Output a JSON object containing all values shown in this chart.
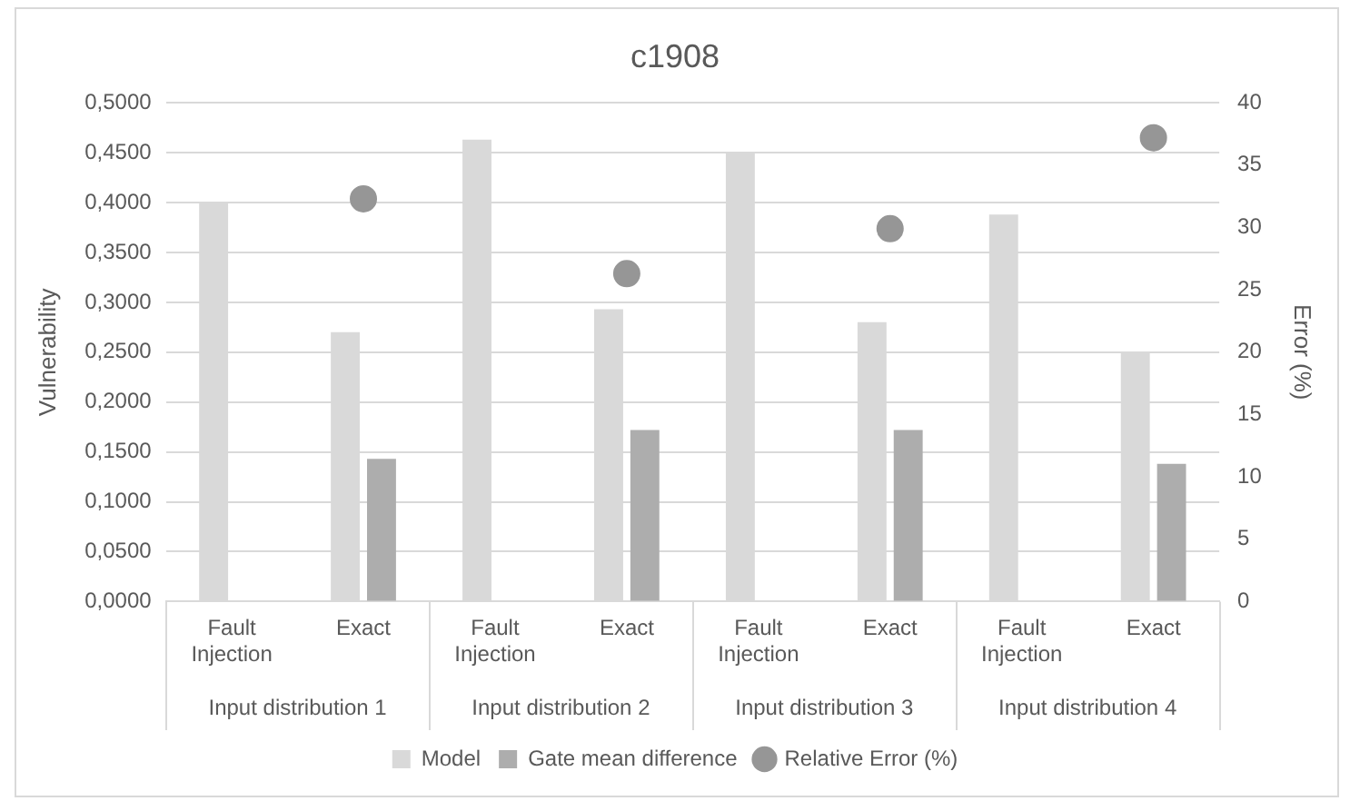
{
  "chart_data": {
    "type": "bar",
    "title": "c1908",
    "ylabel": "Vulnerability",
    "y2label": "Error (%)",
    "categories": [
      "Fault Injection",
      "Exact",
      "Fault Injection",
      "Exact",
      "Fault Injection",
      "Exact",
      "Fault Injection",
      "Exact"
    ],
    "annotations": [
      "Input distribution 1",
      "Input distribution 2",
      "Input distribution 3",
      "Input distribution 4"
    ],
    "series": [
      {
        "name": "Model",
        "color": "#d9d9d9",
        "values": [
          0.4,
          0.27,
          0.463,
          0.293,
          0.45,
          0.28,
          0.388,
          0.25
        ]
      },
      {
        "name": "Gate mean difference",
        "color": "#adadad",
        "values": [
          null,
          0.143,
          null,
          0.172,
          null,
          0.172,
          null,
          0.138
        ]
      },
      {
        "name": "Relative Error (%)",
        "type": "scatter",
        "axis": "y2",
        "marker": "circle",
        "color": "#969696",
        "values": [
          null,
          32.3,
          null,
          26.3,
          null,
          29.9,
          null,
          37.2
        ]
      }
    ],
    "ylim": [
      0,
      0.5
    ],
    "yticks": [
      {
        "value": 0,
        "label": "0,0000"
      },
      {
        "value": 0.05,
        "label": "0,0500"
      },
      {
        "value": 0.1,
        "label": "0,1000"
      },
      {
        "value": 0.15,
        "label": "0,1500"
      },
      {
        "value": 0.2,
        "label": "0,2000"
      },
      {
        "value": 0.25,
        "label": "0,2500"
      },
      {
        "value": 0.3,
        "label": "0,3000"
      },
      {
        "value": 0.35,
        "label": "0,3500"
      },
      {
        "value": 0.4,
        "label": "0,4000"
      },
      {
        "value": 0.45,
        "label": "0,4500"
      },
      {
        "value": 0.5,
        "label": "0,5000"
      }
    ],
    "y2lim": [
      0,
      40
    ],
    "y2ticks": [
      0,
      5,
      10,
      15,
      20,
      25,
      30,
      35,
      40
    ],
    "grid": "y",
    "legend": "bottom"
  }
}
